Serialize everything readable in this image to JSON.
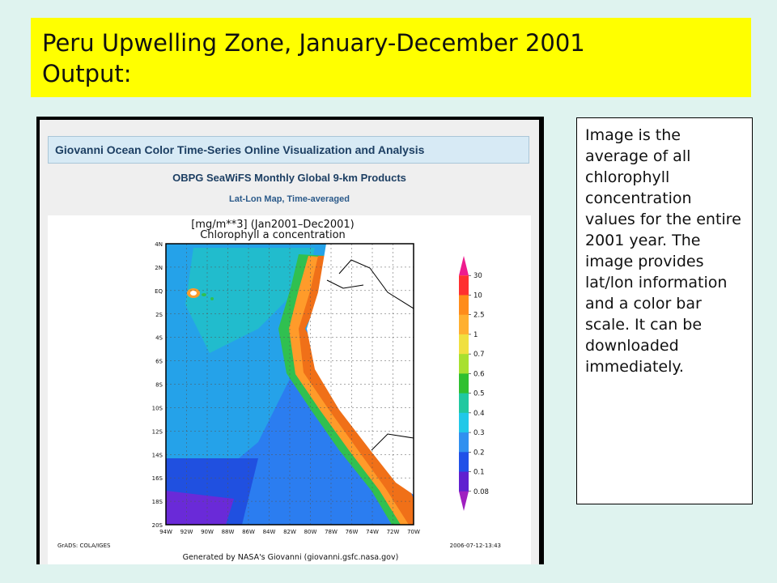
{
  "slide": {
    "title_line1": "Peru Upwelling Zone, January-December 2001",
    "title_line2": "Output:",
    "description": "Image is the average of all chlorophyll concentration values for the entire 2001 year. The image provides lat/lon information and a color bar scale.  It can be downloaded immediately."
  },
  "screenshot": {
    "banner": "Giovanni Ocean Color Time-Series Online Visualization and Analysis",
    "product": "OBPG SeaWiFS Monthly Global 9-km Products",
    "map_type": "Lat-Lon Map, Time-averaged",
    "plot_title_line1": "[mg/m**3] (Jan2001–Dec2001)",
    "plot_title_line2": "Chlorophyll a concentration",
    "lat_labels": [
      "4N",
      "2N",
      "EQ",
      "2S",
      "4S",
      "6S",
      "8S",
      "10S",
      "12S",
      "14S",
      "16S",
      "18S",
      "20S"
    ],
    "lon_labels": [
      "94W",
      "92W",
      "90W",
      "88W",
      "86W",
      "84W",
      "82W",
      "80W",
      "78W",
      "76W",
      "74W",
      "72W",
      "70W"
    ],
    "colorbar_labels": [
      "30",
      "10",
      "2.5",
      "1",
      "0.7",
      "0.6",
      "0.5",
      "0.4",
      "0.3",
      "0.2",
      "0.1",
      "0.08"
    ],
    "colorbar_colors": [
      "#ee1c8e",
      "#ff3030",
      "#ff8c1a",
      "#ffb030",
      "#f0e040",
      "#a8e030",
      "#30c030",
      "#20c8a0",
      "#20c8e8",
      "#3090f0",
      "#2050e8",
      "#6020d0",
      "#a020c0"
    ],
    "footer_left": "GrADS: COLA/IGES",
    "footer_right": "2006-07-12-13:43",
    "generated_by": "Generated by NASA's Giovanni (giovanni.gsfc.nasa.gov)"
  }
}
